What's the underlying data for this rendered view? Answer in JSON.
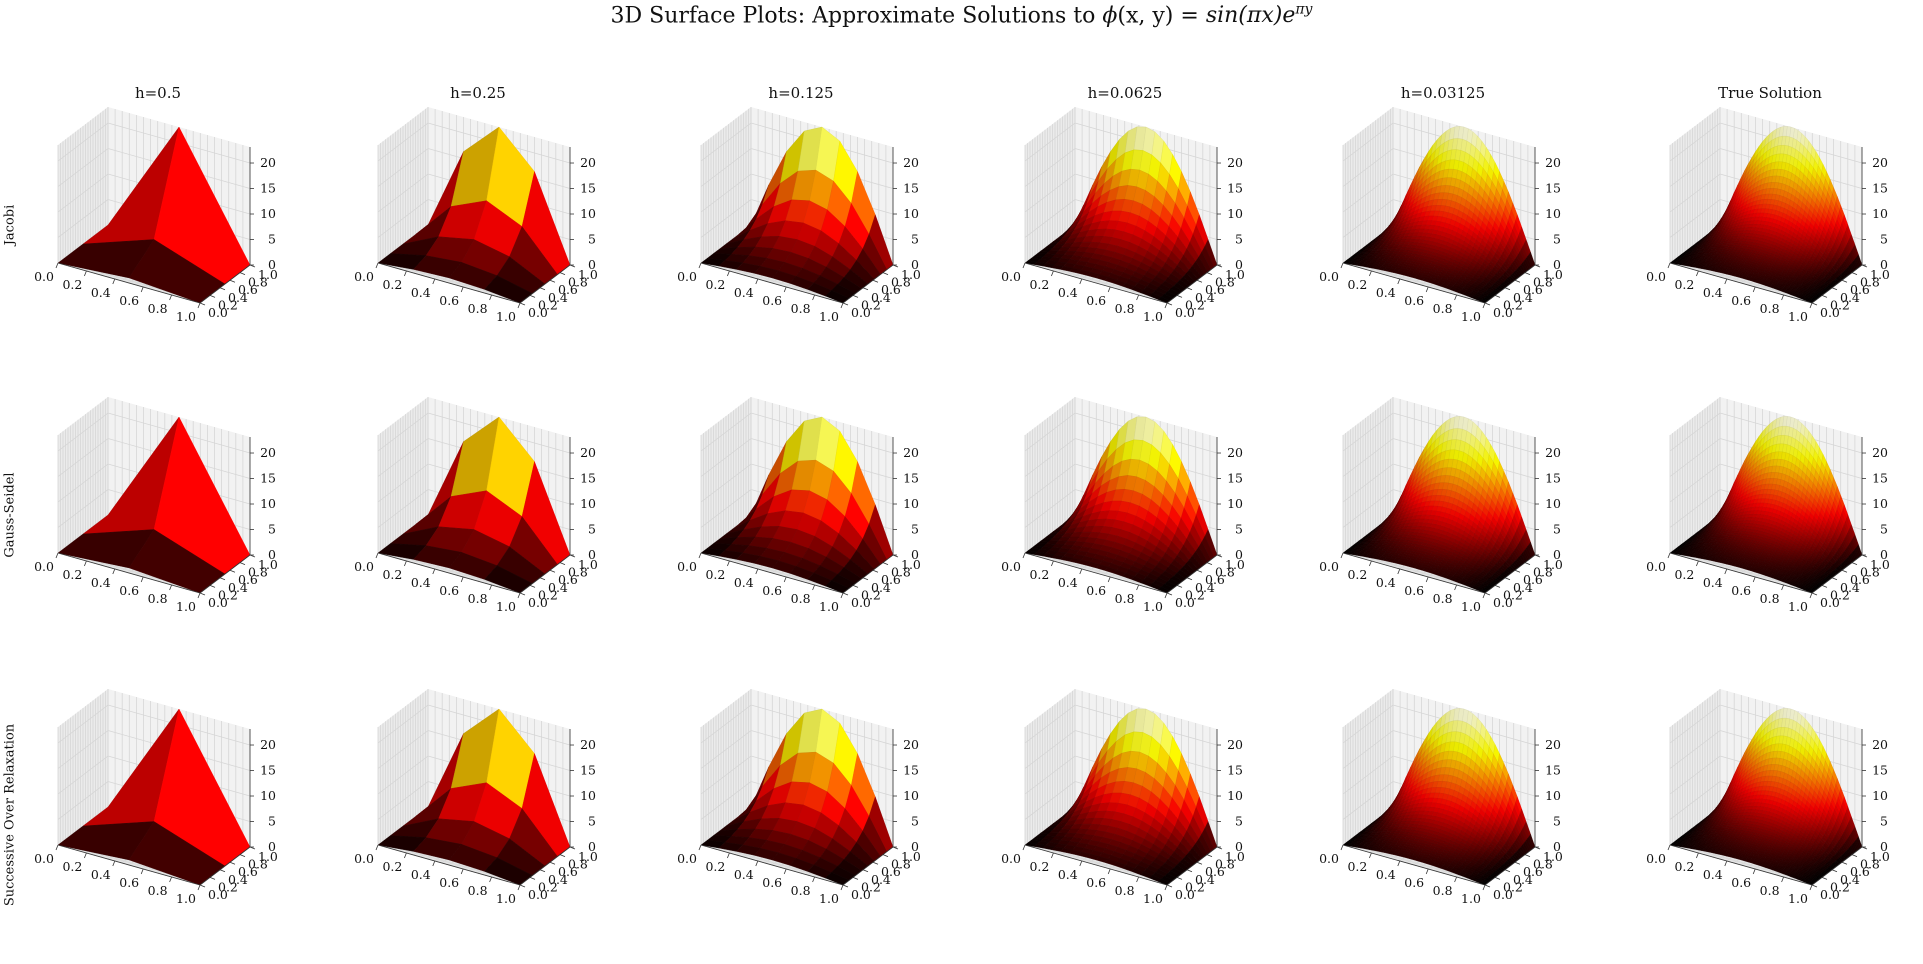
{
  "title": "3D Surface Plots: Approximate Solutions to",
  "title_math": {
    "phi": "ϕ",
    "args": "(x, y)",
    "equals": "=",
    "rhs_base": "sin(πx)e",
    "rhs_exp": "πy"
  },
  "colormap": "hot",
  "pane_color": "#f2f2f2",
  "grid_color": "#d6d6d6",
  "chart_data": {
    "type": "surface3d",
    "function": "phi(x,y) = sin(pi x) * exp(pi y)",
    "columns": [
      "h=0.5",
      "h=0.25",
      "h=0.125",
      "h=0.0625",
      "h=0.03125",
      "True Solution"
    ],
    "column_grid_steps": [
      0.5,
      0.25,
      0.125,
      0.0625,
      0.03125,
      0.025
    ],
    "rows": [
      "Jacobi",
      "Gauss-Seidel",
      "Successive Over Relaxation"
    ],
    "x_ticks": [
      "0.0",
      "0.2",
      "0.4",
      "0.6",
      "0.8",
      "1.0"
    ],
    "y_ticks": [
      "0.0",
      "0.2",
      "0.4",
      "0.6",
      "0.8",
      "1.0"
    ],
    "z_ticks": [
      "0",
      "5",
      "10",
      "15",
      "20"
    ],
    "xlim": [
      0,
      1
    ],
    "ylim": [
      0,
      1
    ],
    "zlim": [
      0,
      23.14
    ],
    "z_max": 23.14,
    "xlabel": "",
    "ylabel": "",
    "zlabel": "",
    "grid": true
  }
}
